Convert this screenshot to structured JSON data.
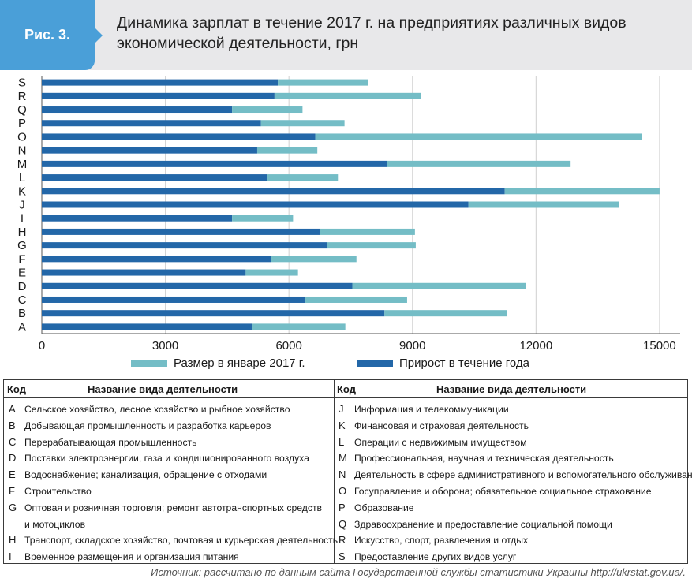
{
  "header": {
    "figure_label": "Рис. 3.",
    "title_line1": "Динамика зарплат в течение 2017 г. на предприятиях различных видов",
    "title_line2": "экономической деятельности, грн"
  },
  "colors": {
    "january": "#74bdc6",
    "growth": "#2367a8",
    "header_bg": "#e8e8ea",
    "badge": "#4a9fd8"
  },
  "chart_data": {
    "type": "bar",
    "orientation": "horizontal",
    "stacked": true,
    "categories": [
      "A",
      "B",
      "C",
      "D",
      "E",
      "F",
      "G",
      "H",
      "I",
      "J",
      "K",
      "L",
      "M",
      "N",
      "O",
      "P",
      "Q",
      "R",
      "S"
    ],
    "series": [
      {
        "name": "Размер в январе 2017 г.",
        "values": [
          5110,
          8320,
          6400,
          7540,
          4950,
          5560,
          6920,
          6760,
          4620,
          10360,
          11240,
          5480,
          8380,
          5230,
          6640,
          5320,
          4620,
          5650,
          5730
        ]
      },
      {
        "name": "Прирост в течение года",
        "values": [
          2260,
          2970,
          2470,
          4210,
          1270,
          2080,
          2160,
          2300,
          1480,
          3660,
          3760,
          1710,
          4460,
          1460,
          7930,
          2030,
          1710,
          3560,
          2190
        ]
      }
    ],
    "xticks": [
      "0",
      "3000",
      "6000",
      "9000",
      "12000",
      "15000"
    ],
    "xlim": [
      0,
      15500
    ],
    "grid": true,
    "legend_position": "bottom"
  },
  "legend": [
    {
      "label": "Размер в январе 2017 г."
    },
    {
      "label": "Прирост в течение года"
    }
  ],
  "table": {
    "header_code": "Код",
    "header_name": "Название вида деятельности",
    "left_rows": [
      {
        "code": "A",
        "name": "Сельское хозяйство, лесное хозяйство и рыбное хозяйство"
      },
      {
        "code": "B",
        "name": "Добывающая промышленность и разработка карьеров"
      },
      {
        "code": "C",
        "name": "Перерабатывающая промышленность"
      },
      {
        "code": "D",
        "name": "Поставки электроэнергии, газа и кондиционированного воздуха"
      },
      {
        "code": "E",
        "name": "Водоснабжение; канализация, обращение с отходами"
      },
      {
        "code": "F",
        "name": "Строительство"
      },
      {
        "code": "G",
        "name": "Оптовая и розничная торговля; ремонт автотранспортных средств"
      },
      {
        "code": "",
        "name": "и мотоциклов"
      },
      {
        "code": "H",
        "name": "Транспорт, складское хозяйство, почтовая и курьерская деятельность"
      },
      {
        "code": "I",
        "name": "Временное размещения и организация питания"
      }
    ],
    "right_rows": [
      {
        "code": "J",
        "name": "Информация и телекоммуникации"
      },
      {
        "code": "K",
        "name": "Финансовая и страховая деятельность"
      },
      {
        "code": "L",
        "name": "Операции с недвижимым имуществом"
      },
      {
        "code": "M",
        "name": "Профессиональная, научная и техническая деятельность"
      },
      {
        "code": "N",
        "name": "Деятельность в сфере административного и вспомогательного обслуживания"
      },
      {
        "code": "O",
        "name": "Госуправление и оборона; обязательное социальное страхование"
      },
      {
        "code": "P",
        "name": "Образование"
      },
      {
        "code": "Q",
        "name": "Здравоохранение и предоставление социальной помощи"
      },
      {
        "code": "R",
        "name": "Искусство, спорт, развлечения и отдых"
      },
      {
        "code": "S",
        "name": "Предоставление других видов услуг"
      }
    ]
  },
  "source": "Источник: рассчитано по данным сайта Государственной службы статистики Украины http://ukrstat.gov.ua/."
}
